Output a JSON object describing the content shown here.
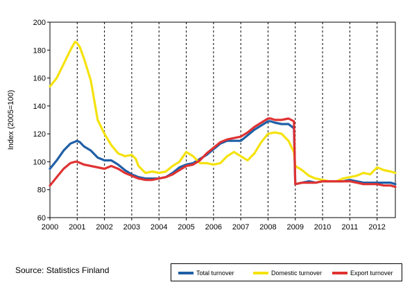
{
  "chart_data": {
    "type": "line",
    "xlabel": "",
    "ylabel": "Index (2005=100)",
    "ylim": [
      60,
      200
    ],
    "xlim": [
      2000,
      2012.67
    ],
    "y_ticks": [
      60,
      80,
      100,
      120,
      140,
      160,
      180,
      200
    ],
    "x_tick_labels": [
      "2000",
      "2001",
      "2002",
      "2003",
      "2004",
      "2005",
      "2006",
      "2007",
      "2008",
      "2009",
      "2010",
      "2011",
      "2012"
    ],
    "grid": "vertical dashed at year boundaries",
    "legend_position": "bottom-right",
    "series": [
      {
        "name": "Total turnover",
        "color": "#1f5fa6",
        "points": [
          [
            2000.0,
            95
          ],
          [
            2000.25,
            101
          ],
          [
            2000.5,
            108
          ],
          [
            2000.75,
            113
          ],
          [
            2001.0,
            115
          ],
          [
            2001.1,
            114
          ],
          [
            2001.25,
            111
          ],
          [
            2001.5,
            108
          ],
          [
            2001.75,
            103
          ],
          [
            2002.0,
            101
          ],
          [
            2002.25,
            101
          ],
          [
            2002.5,
            98
          ],
          [
            2002.75,
            94
          ],
          [
            2003.0,
            91
          ],
          [
            2003.25,
            89
          ],
          [
            2003.5,
            88
          ],
          [
            2003.75,
            88
          ],
          [
            2004.0,
            88
          ],
          [
            2004.25,
            89
          ],
          [
            2004.5,
            92
          ],
          [
            2004.75,
            96
          ],
          [
            2005.0,
            98
          ],
          [
            2005.25,
            99
          ],
          [
            2005.5,
            102
          ],
          [
            2005.75,
            105
          ],
          [
            2006.0,
            109
          ],
          [
            2006.25,
            113
          ],
          [
            2006.5,
            115
          ],
          [
            2006.75,
            115
          ],
          [
            2007.0,
            115
          ],
          [
            2007.25,
            119
          ],
          [
            2007.5,
            123
          ],
          [
            2007.75,
            126
          ],
          [
            2008.0,
            129
          ],
          [
            2008.1,
            129
          ],
          [
            2008.25,
            128
          ],
          [
            2008.5,
            127
          ],
          [
            2008.75,
            127
          ],
          [
            2008.95,
            124
          ],
          [
            2009.0,
            84
          ],
          [
            2009.25,
            85
          ],
          [
            2009.5,
            86
          ],
          [
            2009.75,
            85
          ],
          [
            2010.0,
            86
          ],
          [
            2010.25,
            86
          ],
          [
            2010.5,
            86
          ],
          [
            2010.75,
            86
          ],
          [
            2011.0,
            87
          ],
          [
            2011.25,
            86
          ],
          [
            2011.5,
            85
          ],
          [
            2011.75,
            85
          ],
          [
            2012.0,
            85
          ],
          [
            2012.25,
            85
          ],
          [
            2012.5,
            85
          ],
          [
            2012.67,
            84
          ]
        ]
      },
      {
        "name": "Domestic turnover",
        "color": "#f5e20c",
        "points": [
          [
            2000.0,
            154
          ],
          [
            2000.25,
            160
          ],
          [
            2000.5,
            170
          ],
          [
            2000.75,
            180
          ],
          [
            2000.92,
            186
          ],
          [
            2001.0,
            185
          ],
          [
            2001.1,
            182
          ],
          [
            2001.25,
            174
          ],
          [
            2001.5,
            158
          ],
          [
            2001.75,
            130
          ],
          [
            2002.0,
            120
          ],
          [
            2002.25,
            112
          ],
          [
            2002.5,
            106
          ],
          [
            2002.75,
            104
          ],
          [
            2003.0,
            105
          ],
          [
            2003.15,
            102
          ],
          [
            2003.25,
            97
          ],
          [
            2003.5,
            92
          ],
          [
            2003.75,
            93
          ],
          [
            2004.0,
            92
          ],
          [
            2004.25,
            93
          ],
          [
            2004.5,
            97
          ],
          [
            2004.75,
            100
          ],
          [
            2005.0,
            107
          ],
          [
            2005.25,
            104
          ],
          [
            2005.5,
            99
          ],
          [
            2005.75,
            99
          ],
          [
            2006.0,
            98
          ],
          [
            2006.25,
            99
          ],
          [
            2006.5,
            104
          ],
          [
            2006.75,
            107
          ],
          [
            2007.0,
            104
          ],
          [
            2007.25,
            101
          ],
          [
            2007.5,
            106
          ],
          [
            2007.75,
            114
          ],
          [
            2008.0,
            120
          ],
          [
            2008.25,
            121
          ],
          [
            2008.5,
            120
          ],
          [
            2008.75,
            115
          ],
          [
            2008.95,
            107
          ],
          [
            2009.0,
            97
          ],
          [
            2009.25,
            94
          ],
          [
            2009.5,
            90
          ],
          [
            2009.75,
            88
          ],
          [
            2010.0,
            87
          ],
          [
            2010.25,
            86
          ],
          [
            2010.5,
            86
          ],
          [
            2010.75,
            88
          ],
          [
            2011.0,
            89
          ],
          [
            2011.25,
            90
          ],
          [
            2011.5,
            92
          ],
          [
            2011.75,
            91
          ],
          [
            2012.0,
            96
          ],
          [
            2012.25,
            94
          ],
          [
            2012.5,
            93
          ],
          [
            2012.67,
            92
          ]
        ]
      },
      {
        "name": "Export turnover",
        "color": "#e03232",
        "points": [
          [
            2000.0,
            83
          ],
          [
            2000.25,
            89
          ],
          [
            2000.5,
            95
          ],
          [
            2000.75,
            99
          ],
          [
            2000.92,
            100
          ],
          [
            2001.0,
            100
          ],
          [
            2001.25,
            98
          ],
          [
            2001.5,
            97
          ],
          [
            2001.75,
            96
          ],
          [
            2002.0,
            95
          ],
          [
            2002.25,
            97
          ],
          [
            2002.5,
            95
          ],
          [
            2002.75,
            92
          ],
          [
            2003.0,
            90
          ],
          [
            2003.25,
            88
          ],
          [
            2003.5,
            87
          ],
          [
            2003.75,
            87
          ],
          [
            2004.0,
            88
          ],
          [
            2004.25,
            89
          ],
          [
            2004.5,
            91
          ],
          [
            2004.75,
            94
          ],
          [
            2005.0,
            97
          ],
          [
            2005.25,
            98
          ],
          [
            2005.5,
            101
          ],
          [
            2005.75,
            106
          ],
          [
            2006.0,
            110
          ],
          [
            2006.25,
            114
          ],
          [
            2006.5,
            116
          ],
          [
            2006.75,
            117
          ],
          [
            2007.0,
            118
          ],
          [
            2007.25,
            121
          ],
          [
            2007.5,
            125
          ],
          [
            2007.75,
            128
          ],
          [
            2008.0,
            131
          ],
          [
            2008.1,
            131
          ],
          [
            2008.25,
            130
          ],
          [
            2008.5,
            130
          ],
          [
            2008.75,
            131
          ],
          [
            2008.95,
            129
          ],
          [
            2009.0,
            84
          ],
          [
            2009.25,
            85
          ],
          [
            2009.5,
            85
          ],
          [
            2009.75,
            85
          ],
          [
            2010.0,
            86
          ],
          [
            2010.25,
            86
          ],
          [
            2010.5,
            86
          ],
          [
            2010.75,
            86
          ],
          [
            2011.0,
            86
          ],
          [
            2011.25,
            85
          ],
          [
            2011.5,
            84
          ],
          [
            2011.75,
            84
          ],
          [
            2012.0,
            84
          ],
          [
            2012.25,
            83
          ],
          [
            2012.5,
            83
          ],
          [
            2012.67,
            82
          ]
        ]
      }
    ]
  },
  "source_text": "Source: Statistics Finland"
}
